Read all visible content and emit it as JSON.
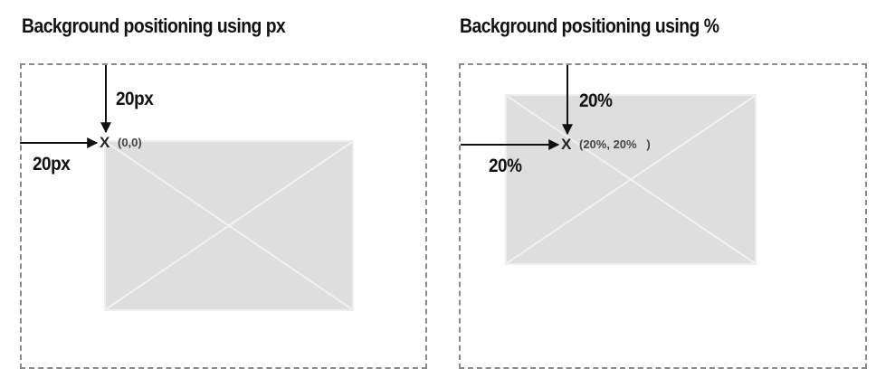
{
  "left_panel": {
    "title": "Background positioning using px",
    "top_offset": "20px",
    "left_offset": "20px",
    "origin_marker": "X",
    "origin_coord": "(0,0)"
  },
  "right_panel": {
    "title": "Background positioning using %",
    "top_offset": "20%",
    "left_offset": "20%",
    "origin_marker": "X",
    "origin_coord": "(20%, 20%   )"
  },
  "colors": {
    "frame_border": "#8a8a8a",
    "image_fill": "#dedede",
    "arrow": "#111111"
  }
}
